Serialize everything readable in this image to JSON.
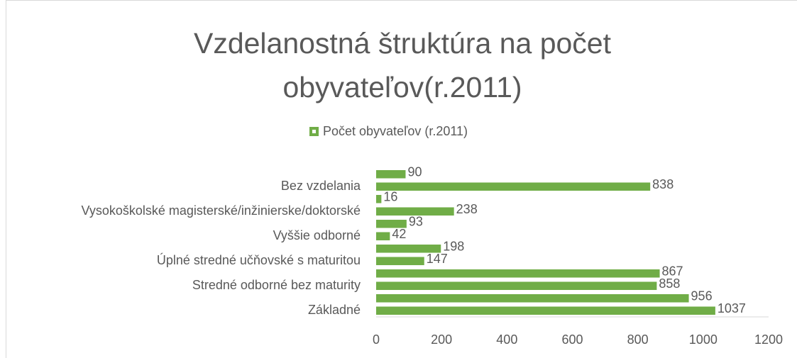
{
  "chart_data": {
    "type": "bar",
    "orientation": "horizontal",
    "title": "Vzdelanostná štruktúra na počet obyvateľov(r.2011)",
    "categories": [
      "Základné",
      null,
      "Stredné odborné bez maturity",
      null,
      "Úplné stredné učňovské s maturitou",
      null,
      "Vyššie odborné",
      null,
      "Vysokoškolské magisterské/inžinierske/doktorské",
      null,
      "Bez vzdelania",
      null
    ],
    "series": [
      {
        "name": "Počet obyvateľov (r.2011)",
        "color": "#70ad47",
        "values": [
          1037,
          956,
          858,
          867,
          147,
          198,
          42,
          93,
          238,
          16,
          838,
          90
        ]
      }
    ],
    "xlim": [
      0,
      1200
    ],
    "xticks": [
      0,
      200,
      400,
      600,
      800,
      1000,
      1200
    ],
    "legend": "top"
  }
}
